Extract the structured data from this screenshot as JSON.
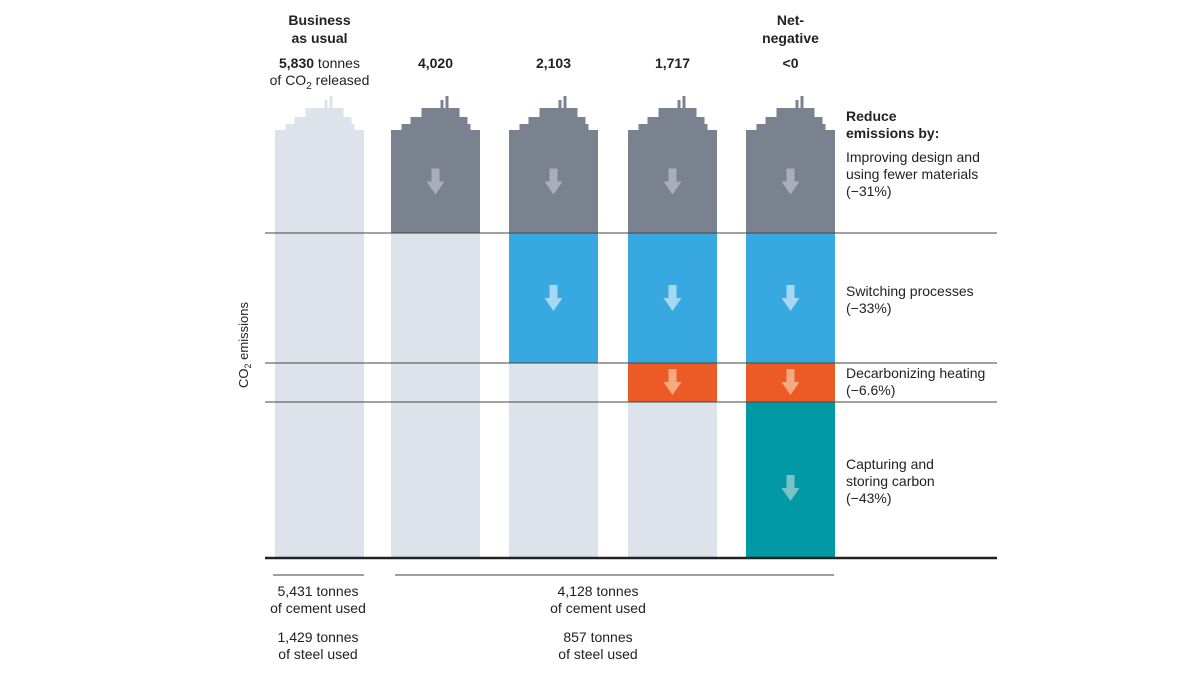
{
  "chart_data": {
    "type": "bar",
    "stacked": true,
    "ylabel": "CO2 emissions",
    "ylabel_main": "CO",
    "ylabel_sub": "2",
    "ylabel_rest": " emissions",
    "columns": [
      {
        "header": [
          "Business",
          "as usual"
        ],
        "value_bold": "5,830",
        "value_rest": " tonnes",
        "value_line2_pre": "of CO",
        "value_line2_sub": "2",
        "value_line2_post": " released",
        "emissions": 5830,
        "segments": [
          "baseline",
          "baseline",
          "baseline",
          "baseline"
        ],
        "arrows": [
          false,
          false,
          false,
          false
        ]
      },
      {
        "header": [],
        "value_bold": "4,020",
        "emissions": 4020,
        "segments": [
          "design",
          "baseline",
          "baseline",
          "baseline"
        ],
        "arrows": [
          true,
          false,
          false,
          false
        ]
      },
      {
        "header": [],
        "value_bold": "2,103",
        "emissions": 2103,
        "segments": [
          "design",
          "process",
          "baseline",
          "baseline"
        ],
        "arrows": [
          true,
          true,
          false,
          false
        ]
      },
      {
        "header": [],
        "value_bold": "1,717",
        "emissions": 1717,
        "segments": [
          "design",
          "process",
          "heating",
          "baseline"
        ],
        "arrows": [
          true,
          true,
          true,
          false
        ]
      },
      {
        "header": [
          "Net-",
          "negative"
        ],
        "value_bold": "<0",
        "emissions": null,
        "segments": [
          "design",
          "process",
          "heating",
          "capture"
        ],
        "arrows": [
          true,
          true,
          true,
          true
        ]
      }
    ],
    "legend_title": [
      "Reduce",
      "emissions by:"
    ],
    "reductions": [
      {
        "key": "design",
        "lines": [
          "Improving design and",
          "using fewer materials",
          "(−31%)"
        ],
        "percent": -31
      },
      {
        "key": "process",
        "lines": [
          "Switching processes",
          "(−33%)"
        ],
        "percent": -33
      },
      {
        "key": "heating",
        "lines": [
          "Decarbonizing heating",
          "(−6.6%)"
        ],
        "percent": -6.6
      },
      {
        "key": "capture",
        "lines": [
          "Capturing and",
          "storing carbon",
          "(−43%)"
        ],
        "percent": -43
      }
    ],
    "materials": [
      {
        "cement": [
          "5,431 tonnes",
          "of cement used"
        ],
        "steel": [
          "1,429 tonnes",
          "of steel used"
        ],
        "applies_to": "Business as usual"
      },
      {
        "cement": [
          "4,128 tonnes",
          "of cement used"
        ],
        "steel": [
          "857 tonnes",
          "of steel used"
        ],
        "applies_to": "all reduced scenarios"
      }
    ],
    "colors": {
      "baseline": "#dce3eb",
      "design": "#7a828f",
      "process": "#37a8e0",
      "heating": "#ec5b26",
      "capture": "#0099a5",
      "arrow_design": "#a9afb8",
      "arrow_process": "#a6d8f3",
      "arrow_heating": "#f6a880",
      "arrow_capture": "#7cc1c8"
    }
  }
}
